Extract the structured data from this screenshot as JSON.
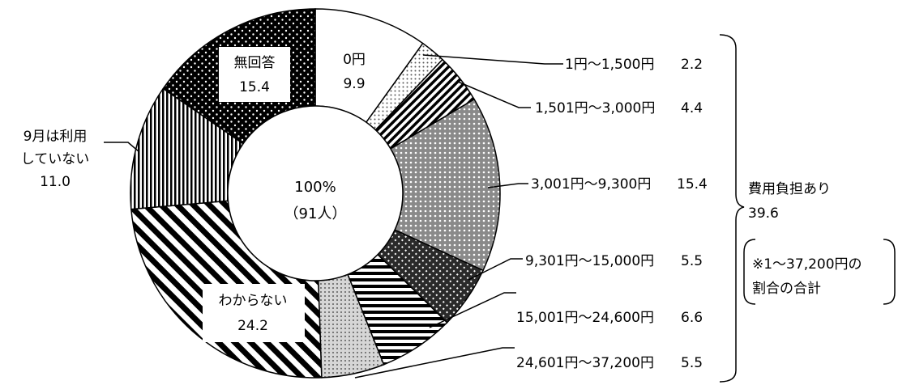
{
  "chart_data": {
    "type": "pie",
    "variant": "donut",
    "center_label": {
      "total": "100%",
      "count": "（91人）"
    },
    "slices": [
      {
        "label": "0円",
        "value": 9.9,
        "value_text": "9.9",
        "pattern": "white"
      },
      {
        "label": "1円～1,500円",
        "value": 2.2,
        "value_text": "2.2",
        "pattern": "light-dots"
      },
      {
        "label": "1,501円～3,000円",
        "value": 4.4,
        "value_text": "4.4",
        "pattern": "diagonal-stripes"
      },
      {
        "label": "3,001円～9,300円",
        "value": 15.4,
        "value_text": "15.4",
        "pattern": "grey-dots"
      },
      {
        "label": "9,301円～15,000円",
        "value": 5.5,
        "value_text": "5.5",
        "pattern": "dark-crosshatch"
      },
      {
        "label": "15,001円～24,600円",
        "value": 6.6,
        "value_text": "6.6",
        "pattern": "horizontal-stripes"
      },
      {
        "label": "24,601円～37,200円",
        "value": 5.5,
        "value_text": "5.5",
        "pattern": "light-grid"
      },
      {
        "label": "わからない",
        "value": 24.2,
        "value_text": "24.2",
        "pattern": "wide-diagonal"
      },
      {
        "label": "9月は利用していない",
        "value": 11.0,
        "value_text": "11.0",
        "pattern": "vertical-stripes"
      },
      {
        "label": "無回答",
        "value": 15.4,
        "value_text": "15.4",
        "pattern": "black-dots"
      }
    ],
    "slice_labels": {
      "zero": {
        "name": "0円",
        "value": "9.9"
      },
      "no_answer": {
        "name": "無回答",
        "value": "15.4"
      },
      "unknown": {
        "name": "わからない",
        "value": "24.2"
      },
      "not_used": {
        "name_line1": "9月は利用",
        "name_line2": "していない",
        "value": "11.0"
      }
    },
    "callouts": [
      {
        "text": "1円～1,500円",
        "value": "2.2"
      },
      {
        "text": "1,501円～3,000円",
        "value": "4.4"
      },
      {
        "text": "3,001円～9,300円",
        "value": "15.4"
      },
      {
        "text": "9,301円～15,000円",
        "value": "5.5"
      },
      {
        "text": "15,001円～24,600円",
        "value": "6.6"
      },
      {
        "text": "24,601円～37,200円",
        "value": "5.5"
      }
    ],
    "bracket_group": {
      "title": "費用負担あり",
      "value": "39.6",
      "note_line1": "※1～37,200円の",
      "note_line2": "割合の合計"
    }
  }
}
